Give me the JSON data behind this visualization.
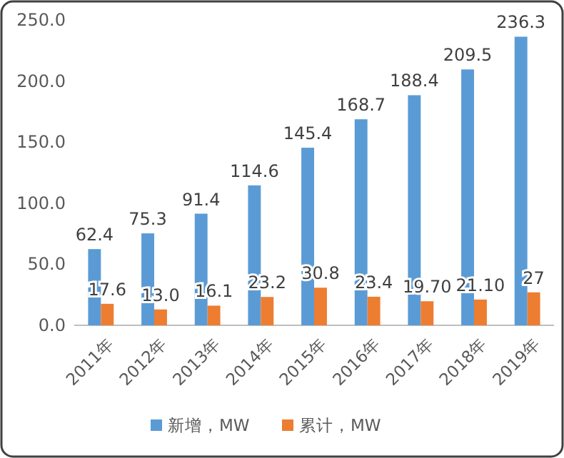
{
  "chart_data": {
    "type": "bar",
    "categories": [
      "2011年",
      "2012年",
      "2013年",
      "2014年",
      "2015年",
      "2016年",
      "2017年",
      "2018年",
      "2019年"
    ],
    "series": [
      {
        "name": "新增，MW",
        "color": "#5b9bd5",
        "values": [
          62.4,
          75.3,
          91.4,
          114.6,
          145.4,
          168.7,
          188.4,
          209.5,
          236.3
        ],
        "value_labels": [
          "62.4",
          "75.3",
          "91.4",
          "114.6",
          "145.4",
          "168.7",
          "188.4",
          "209.5",
          "236.3"
        ]
      },
      {
        "name": "累计，MW",
        "color": "#ed7d31",
        "values": [
          17.6,
          13.0,
          16.1,
          23.2,
          30.8,
          23.4,
          19.7,
          21.1,
          27
        ],
        "value_labels": [
          "17.6",
          "13.0",
          "16.1",
          "23.2",
          "30.8",
          "23.4",
          "19.70",
          "21.10",
          "27"
        ]
      }
    ],
    "ylim": [
      0,
      250
    ],
    "yticks": [
      {
        "value": 0,
        "label": "0.0"
      },
      {
        "value": 50,
        "label": "50.0"
      },
      {
        "value": 100,
        "label": "100.0"
      },
      {
        "value": 150,
        "label": "150.0"
      },
      {
        "value": 200,
        "label": "200.0"
      },
      {
        "value": 250,
        "label": "250.0"
      }
    ],
    "grid": false,
    "legend": "bottom"
  }
}
